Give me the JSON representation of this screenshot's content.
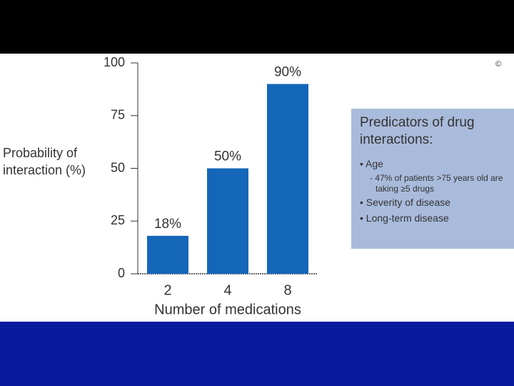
{
  "chart_data": {
    "type": "bar",
    "xlabel": "Number of medications",
    "ylabel": "Probability of interaction (%)",
    "categories": [
      "2",
      "4",
      "8"
    ],
    "values": [
      18,
      50,
      90
    ],
    "value_labels": [
      "18%",
      "50%",
      "90%"
    ],
    "color": "#1466b8",
    "ylim": [
      0,
      100
    ],
    "yticks": [
      0,
      25,
      50,
      75,
      100
    ]
  },
  "copyright": "©",
  "sidebar": {
    "title": "Predicators of drug interactions:",
    "items": [
      {
        "text": "Age",
        "sub": "- 47% of patients >75 years old are taking ≥5 drugs"
      },
      {
        "text": "Severity of disease"
      },
      {
        "text": "Long-term disease"
      }
    ]
  }
}
